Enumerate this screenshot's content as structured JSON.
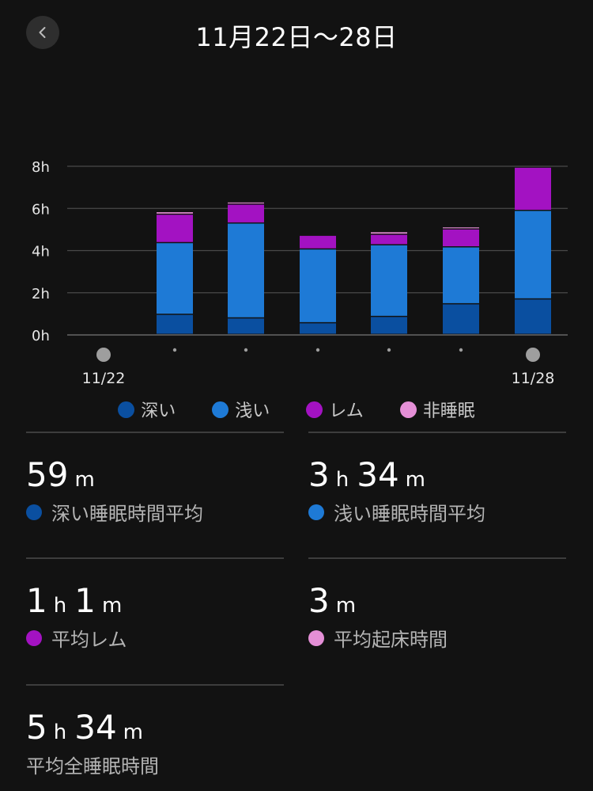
{
  "header": {
    "title": "11月22日〜28日"
  },
  "colors": {
    "deep": "#0a4fa0",
    "light": "#1e7ad6",
    "rem": "#a312c2",
    "awake": "#e48fd6"
  },
  "chart_data": {
    "type": "bar",
    "stacked": true,
    "categories": [
      "11/22",
      "11/23",
      "11/24",
      "11/25",
      "11/26",
      "11/27",
      "11/28"
    ],
    "x_tick_labels": [
      "11/22",
      "",
      "",
      "",
      "",
      "",
      "11/28"
    ],
    "y_ticks": [
      "0h",
      "2h",
      "4h",
      "6h",
      "8h"
    ],
    "ylim": [
      0,
      8
    ],
    "grid": true,
    "series": [
      {
        "name": "深い",
        "color": "#0a4fa0",
        "values": [
          0,
          0.95,
          0.78,
          0.55,
          0.85,
          1.45,
          1.68
        ]
      },
      {
        "name": "浅い",
        "color": "#1e7ad6",
        "values": [
          0,
          3.4,
          4.5,
          3.5,
          3.4,
          2.7,
          4.2
        ]
      },
      {
        "name": "レム",
        "color": "#a312c2",
        "values": [
          0,
          1.35,
          0.9,
          0.65,
          0.5,
          0.85,
          2.05
        ]
      },
      {
        "name": "非睡眠",
        "color": "#e48fd6",
        "values": [
          0,
          0.12,
          0.1,
          0,
          0.12,
          0.1,
          0
        ]
      }
    ]
  },
  "legend": [
    {
      "label": "深い",
      "color": "#0a4fa0"
    },
    {
      "label": "浅い",
      "color": "#1e7ad6"
    },
    {
      "label": "レム",
      "color": "#a312c2"
    },
    {
      "label": "非睡眠",
      "color": "#e48fd6"
    }
  ],
  "stats": {
    "deep": {
      "v1": "59",
      "u1": "m",
      "v2": "",
      "u2": "",
      "label": "深い睡眠時間平均",
      "color": "#0a4fa0"
    },
    "light": {
      "v1": "3",
      "u1": "h",
      "v2": "34",
      "u2": "m",
      "label": "浅い睡眠時間平均",
      "color": "#1e7ad6"
    },
    "rem": {
      "v1": "1",
      "u1": "h",
      "v2": "1",
      "u2": "m",
      "label": "平均レム",
      "color": "#a312c2"
    },
    "awake": {
      "v1": "3",
      "u1": "m",
      "v2": "",
      "u2": "",
      "label": "平均起床時間",
      "color": "#e48fd6"
    },
    "total": {
      "v1": "5",
      "u1": "h",
      "v2": "34",
      "u2": "m",
      "label": "平均全睡眠時間"
    }
  }
}
